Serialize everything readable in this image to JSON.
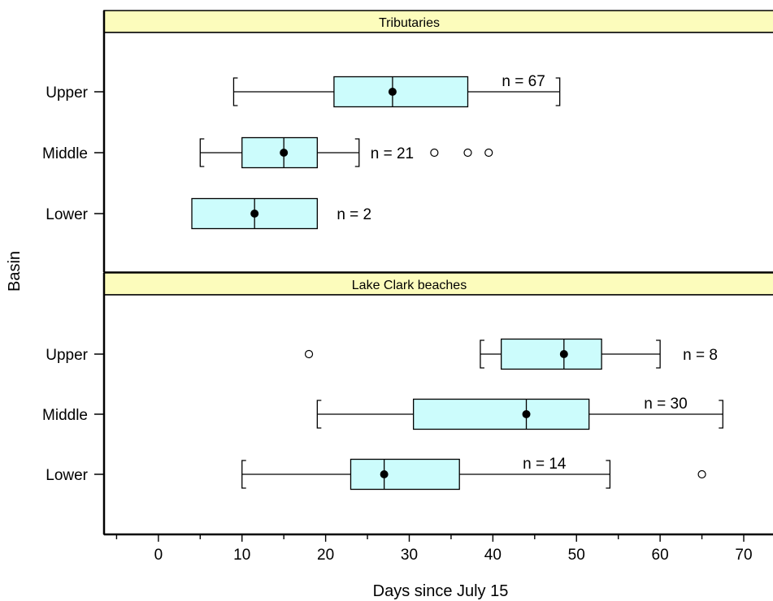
{
  "chart_data": {
    "type": "boxplot",
    "xlabel": "Days since July 15",
    "ylabel": "Basin",
    "xlim": [
      -6.5,
      73.5
    ],
    "xticks": [
      0,
      10,
      20,
      30,
      40,
      50,
      60,
      70
    ],
    "categories": [
      "Upper",
      "Middle",
      "Lower"
    ],
    "panels": [
      {
        "title": "Tributaries",
        "boxes": [
          {
            "category": "Upper",
            "whisker_low": 9,
            "q1": 21,
            "median": 28,
            "q3": 37,
            "whisker_high": 48,
            "mean": 28,
            "outliers": [],
            "n_label": "n = 67"
          },
          {
            "category": "Middle",
            "whisker_low": 5,
            "q1": 10,
            "median": 15,
            "q3": 19,
            "whisker_high": 24,
            "mean": 15,
            "outliers": [
              33,
              37,
              39.5
            ],
            "n_label": "n = 21"
          },
          {
            "category": "Lower",
            "whisker_low": null,
            "q1": 4,
            "median": 11.5,
            "q3": 19,
            "whisker_high": null,
            "mean": 11.5,
            "outliers": [],
            "n_label": "n = 2"
          }
        ]
      },
      {
        "title": "Lake Clark beaches",
        "boxes": [
          {
            "category": "Upper",
            "whisker_low": 38.5,
            "q1": 41,
            "median": 48.5,
            "q3": 53,
            "whisker_high": 60,
            "mean": 48.5,
            "outliers": [
              18
            ],
            "n_label": "n = 8"
          },
          {
            "category": "Middle",
            "whisker_low": 19,
            "q1": 30.5,
            "median": 44,
            "q3": 51.5,
            "whisker_high": 67.5,
            "mean": 44,
            "outliers": [],
            "n_label": "n = 30"
          },
          {
            "category": "Lower",
            "whisker_low": 10,
            "q1": 23,
            "median": 27,
            "q3": 36,
            "whisker_high": 54,
            "mean": 27,
            "outliers": [
              65
            ],
            "n_label": "n = 14"
          }
        ]
      }
    ],
    "colors": {
      "box_fill": "#ccfcfc",
      "strip_fill": "#fcfcbc"
    }
  }
}
